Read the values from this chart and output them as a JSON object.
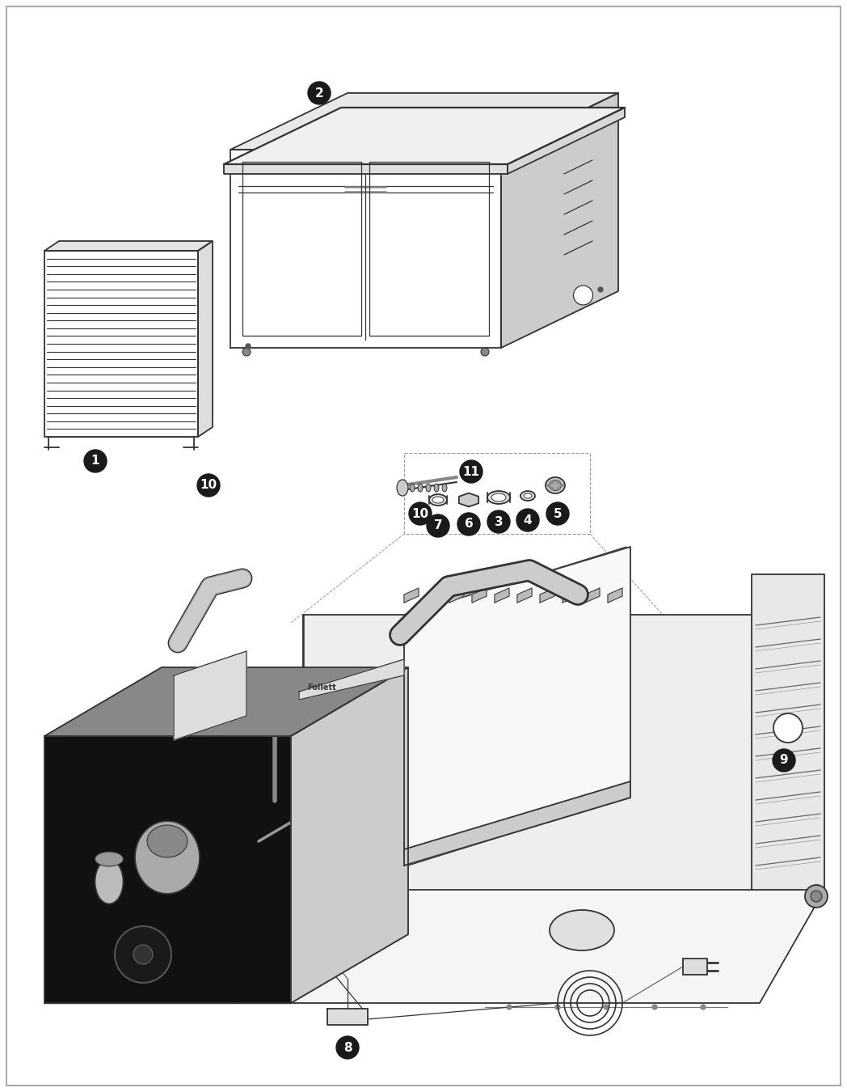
{
  "bg_color": "#ffffff",
  "line_color": "#333333",
  "label_bg": "#1a1a1a",
  "label_fg": "#ffffff",
  "gray_light": "#e8e8e8",
  "gray_mid": "#cccccc",
  "gray_dark": "#999999",
  "black_fill": "#111111",
  "white_fill": "#ffffff"
}
